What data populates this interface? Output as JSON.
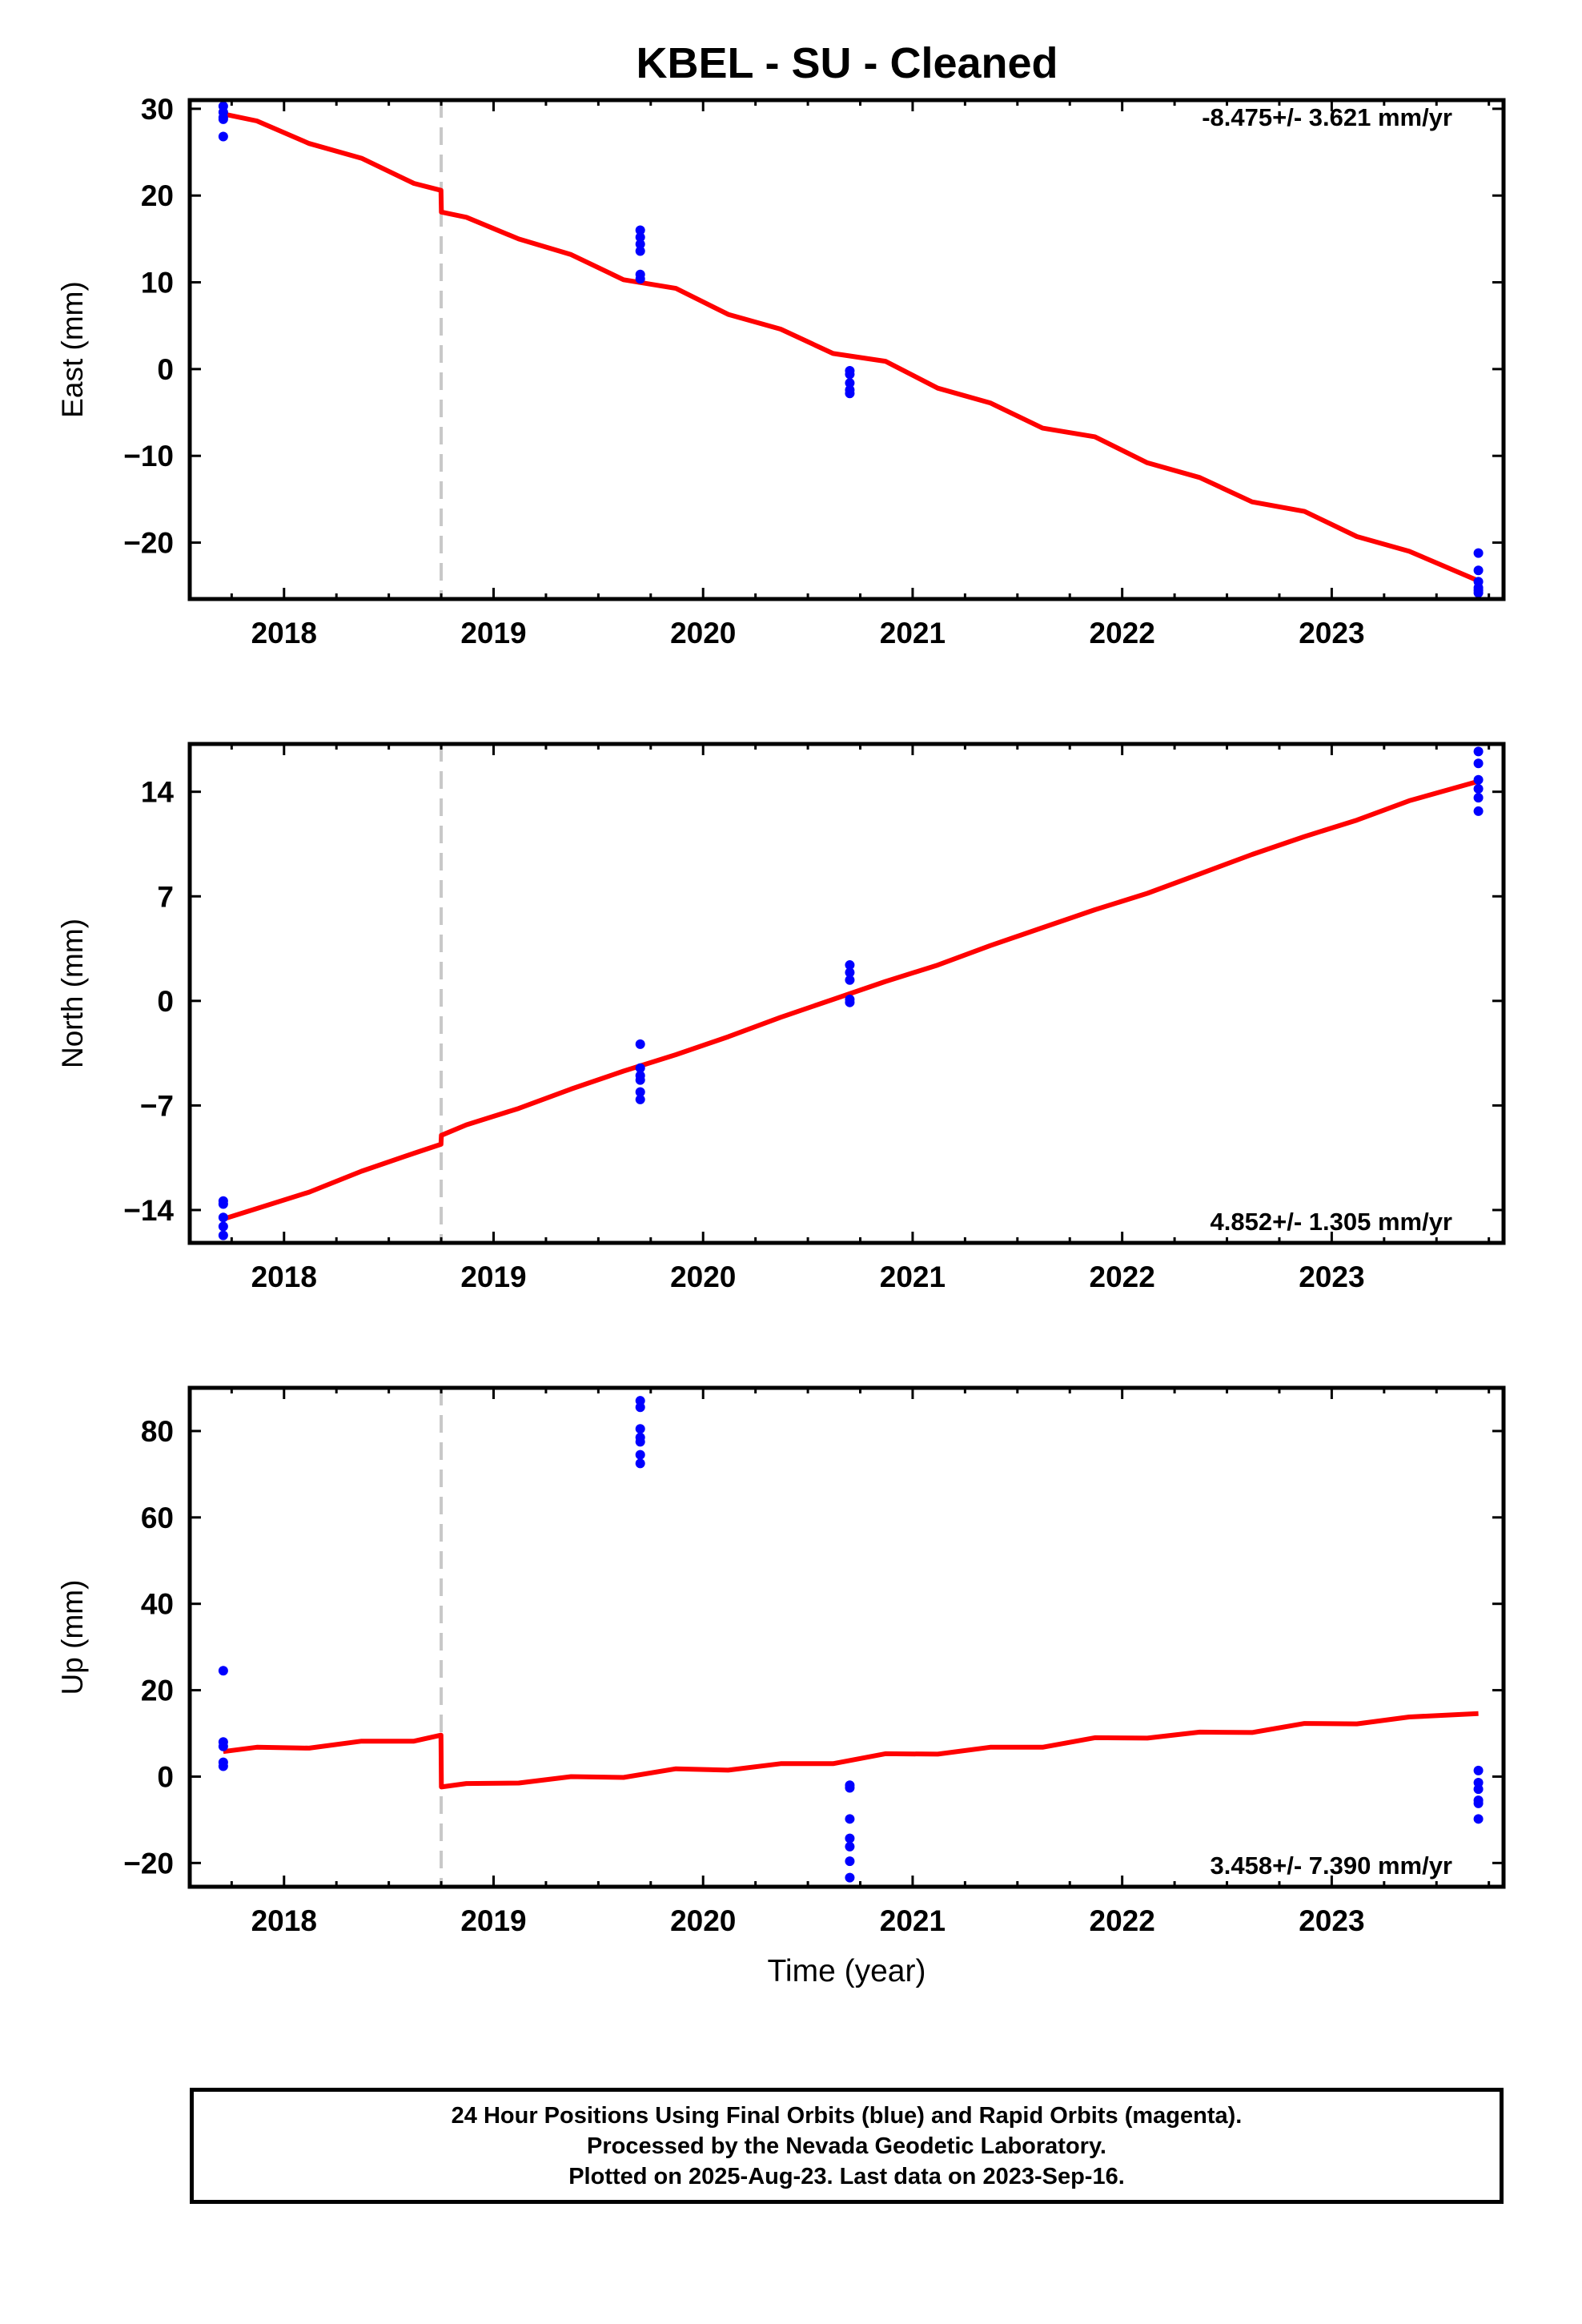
{
  "title": "KBEL  - SU - Cleaned",
  "footer": {
    "line1": "24 Hour Positions Using Final Orbits (blue) and Rapid Orbits (magenta).",
    "line2": "Processed by the Nevada Geodetic Laboratory.",
    "line3": "Plotted on 2025-Aug-23. Last data on 2023-Sep-16."
  },
  "colors": {
    "final_orbit_points": "#0000ff",
    "model_fit": "#ff0000",
    "antenna_change_line": "#c8c8c8"
  },
  "chart_data": [
    {
      "type": "scatter",
      "component": "East",
      "ylabel": "East (mm)",
      "xlabel": "",
      "xlim": [
        2017.55,
        2023.82
      ],
      "ylim": [
        -26.5,
        31
      ],
      "yticks": [
        -20,
        -10,
        0,
        10,
        20,
        30
      ],
      "xticks": [
        2018,
        2019,
        2020,
        2021,
        2022,
        2023
      ],
      "rate": "-8.475+/- 3.621 mm/yr",
      "rate_position": "top-right",
      "offset_epoch": 2018.75,
      "points": {
        "x": [
          2017.71,
          2017.71,
          2017.71,
          2017.71,
          2017.71,
          2019.7,
          2019.7,
          2019.7,
          2019.7,
          2019.7,
          2019.7,
          2020.7,
          2020.7,
          2020.7,
          2020.7,
          2020.7,
          2023.7,
          2023.7,
          2023.7,
          2023.7,
          2023.7,
          2023.7
        ],
        "y": [
          30.3,
          29.6,
          29.0,
          28.8,
          26.8,
          16.0,
          15.2,
          14.4,
          13.6,
          10.9,
          10.4,
          -0.2,
          -0.6,
          -1.6,
          -2.4,
          -2.8,
          -21.2,
          -23.2,
          -24.5,
          -25.2,
          -25.5,
          -25.8
        ]
      },
      "model": {
        "x": [
          2017.71,
          2017.87,
          2018.12,
          2018.37,
          2018.62,
          2018.749,
          2018.751,
          2018.87,
          2019.12,
          2019.37,
          2019.62,
          2019.87,
          2020.12,
          2020.37,
          2020.62,
          2020.87,
          2021.12,
          2021.37,
          2021.62,
          2021.87,
          2022.12,
          2022.37,
          2022.62,
          2022.87,
          2023.12,
          2023.37,
          2023.7
        ],
        "y": [
          29.4,
          28.6,
          26.0,
          24.3,
          21.4,
          20.6,
          18.1,
          17.5,
          15.0,
          13.2,
          10.3,
          9.3,
          6.3,
          4.6,
          1.8,
          0.9,
          -2.2,
          -3.9,
          -6.8,
          -7.8,
          -10.8,
          -12.5,
          -15.3,
          -16.4,
          -19.3,
          -21.0,
          -24.4
        ]
      }
    },
    {
      "type": "scatter",
      "component": "North",
      "ylabel": "North (mm)",
      "xlabel": "",
      "xlim": [
        2017.55,
        2023.82
      ],
      "ylim": [
        -16.2,
        17.2
      ],
      "yticks": [
        -14,
        -7,
        0,
        7,
        14
      ],
      "xticks": [
        2018,
        2019,
        2020,
        2021,
        2022,
        2023
      ],
      "rate": "4.852+/- 1.305 mm/yr",
      "rate_position": "bottom-right",
      "offset_epoch": 2018.75,
      "points": {
        "x": [
          2017.71,
          2017.71,
          2017.71,
          2017.71,
          2017.71,
          2019.7,
          2019.7,
          2019.7,
          2019.7,
          2019.7,
          2019.7,
          2020.7,
          2020.7,
          2020.7,
          2020.7,
          2020.7,
          2023.7,
          2023.7,
          2023.7,
          2023.7,
          2023.7,
          2023.7
        ],
        "y": [
          -13.4,
          -13.6,
          -14.5,
          -15.1,
          -15.7,
          -2.9,
          -4.5,
          -5.0,
          -5.3,
          -6.1,
          -6.6,
          2.4,
          1.9,
          1.4,
          0.1,
          -0.1,
          16.7,
          15.9,
          14.8,
          14.2,
          13.6,
          12.7
        ]
      },
      "model": {
        "x": [
          2017.71,
          2017.87,
          2018.12,
          2018.37,
          2018.62,
          2018.749,
          2018.751,
          2018.87,
          2019.12,
          2019.37,
          2019.62,
          2019.87,
          2020.12,
          2020.37,
          2020.62,
          2020.87,
          2021.12,
          2021.37,
          2021.62,
          2021.87,
          2022.12,
          2022.37,
          2022.62,
          2022.87,
          2023.12,
          2023.37,
          2023.7
        ],
        "y": [
          -14.6,
          -13.9,
          -12.8,
          -11.4,
          -10.2,
          -9.6,
          -9.0,
          -8.3,
          -7.2,
          -5.9,
          -4.7,
          -3.6,
          -2.4,
          -1.1,
          0.1,
          1.3,
          2.4,
          3.7,
          4.9,
          6.1,
          7.2,
          8.5,
          9.8,
          11.0,
          12.1,
          13.4,
          14.7
        ]
      }
    },
    {
      "type": "scatter",
      "component": "Up",
      "ylabel": "Up (mm)",
      "xlabel": "Time (year)",
      "xlim": [
        2017.55,
        2023.82
      ],
      "ylim": [
        -25.5,
        90
      ],
      "yticks": [
        -20,
        0,
        20,
        40,
        60,
        80
      ],
      "xticks": [
        2018,
        2019,
        2020,
        2021,
        2022,
        2023
      ],
      "rate": "3.458+/- 7.390 mm/yr",
      "rate_position": "bottom-right",
      "offset_epoch": 2018.75,
      "points": {
        "x": [
          2017.71,
          2017.71,
          2017.71,
          2017.71,
          2017.71,
          2019.7,
          2019.7,
          2019.7,
          2019.7,
          2019.7,
          2019.7,
          2019.7,
          2020.7,
          2020.7,
          2020.7,
          2020.7,
          2020.7,
          2020.7,
          2020.7,
          2023.7,
          2023.7,
          2023.7,
          2023.7,
          2023.7,
          2023.7
        ],
        "y": [
          24.5,
          8.0,
          7.0,
          3.3,
          2.4,
          87.0,
          85.5,
          80.5,
          78.5,
          77.5,
          74.5,
          72.5,
          -2.0,
          -2.6,
          -9.8,
          -14.3,
          -16.2,
          -19.6,
          -23.4,
          1.4,
          -1.4,
          -2.9,
          -5.5,
          -6.2,
          -9.8
        ]
      },
      "model": {
        "x": [
          2017.71,
          2017.87,
          2018.12,
          2018.37,
          2018.62,
          2018.749,
          2018.751,
          2018.87,
          2019.12,
          2019.37,
          2019.62,
          2019.87,
          2020.12,
          2020.37,
          2020.62,
          2020.87,
          2021.12,
          2021.37,
          2021.62,
          2021.87,
          2022.12,
          2022.37,
          2022.62,
          2022.87,
          2023.12,
          2023.37,
          2023.7
        ],
        "y": [
          5.8,
          6.8,
          6.6,
          8.2,
          8.2,
          9.6,
          -2.4,
          -1.6,
          -1.5,
          0.0,
          -0.2,
          1.8,
          1.5,
          3.0,
          3.0,
          5.3,
          5.2,
          6.8,
          6.8,
          9.0,
          8.9,
          10.3,
          10.2,
          12.3,
          12.2,
          13.8,
          14.6
        ]
      }
    }
  ]
}
